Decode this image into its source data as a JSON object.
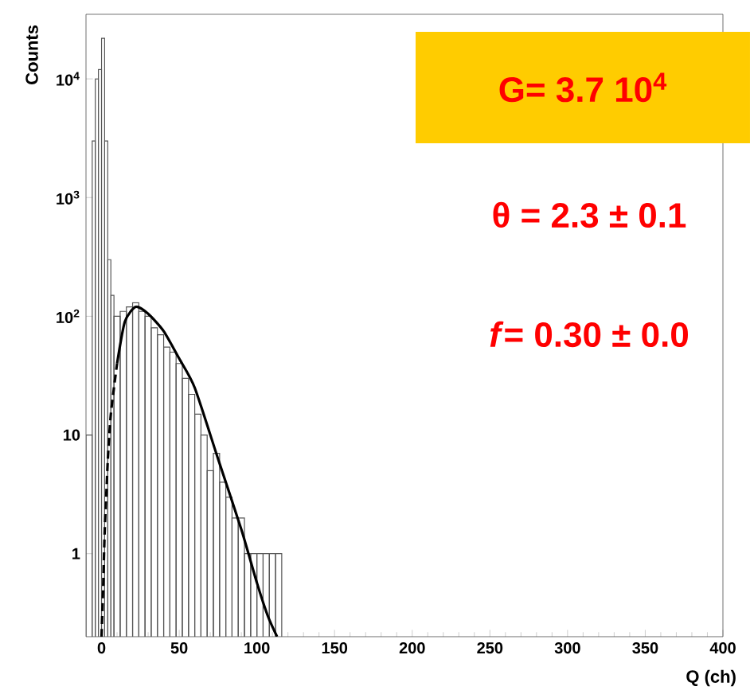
{
  "chart_data": {
    "type": "histogram",
    "xlabel": "Q (ch)",
    "ylabel": "Counts",
    "log": "y",
    "grid": false,
    "color": "#555555",
    "bins": [
      -10,
      -6,
      -4,
      -2,
      0,
      2,
      4,
      6,
      8,
      12,
      16,
      20,
      24,
      28,
      32,
      36,
      40,
      44,
      48,
      52,
      56,
      60,
      64,
      68,
      72,
      76,
      80,
      84,
      88,
      92,
      96,
      100,
      104,
      108,
      112,
      116
    ],
    "values": [
      10,
      3000,
      10000,
      12000,
      22000,
      3000,
      300,
      150,
      100,
      110,
      120,
      130,
      110,
      100,
      80,
      70,
      55,
      50,
      40,
      30,
      22,
      15,
      10,
      5,
      7,
      4,
      3,
      2,
      2,
      1,
      1,
      1,
      1,
      1,
      1
    ],
    "series": [
      {
        "type": "line",
        "line_style": "dashed",
        "color": "#000000",
        "x": [
          0,
          1,
          2,
          3,
          4,
          5,
          6,
          8,
          10
        ],
        "values": [
          0.2,
          0.5,
          1.5,
          3,
          6,
          10,
          15,
          25,
          40
        ]
      },
      {
        "type": "line",
        "line_style": "solid",
        "color": "#000000",
        "x": [
          10,
          15,
          22,
          30,
          40,
          50,
          60,
          75,
          90,
          100,
          107,
          113
        ],
        "values": [
          40,
          90,
          120,
          105,
          75,
          44,
          25,
          6.3,
          1.6,
          0.57,
          0.3,
          0.2
        ]
      }
    ],
    "xlim": [
      -10,
      400
    ],
    "ylim": [
      0.2,
      35000
    ],
    "xticks": [
      0,
      50,
      100,
      150,
      200,
      250,
      300,
      350,
      400
    ],
    "yticks": [
      1,
      10,
      {
        "value": 100,
        "label": "10$^{2}$"
      },
      {
        "value": 1000,
        "label": "10$^{3}$"
      },
      {
        "value": 10000,
        "label": "10$^{4}$"
      }
    ],
    "annotations": [
      "G= 3.7 10$^{4}$",
      "θ = 2.3 ± 0.1",
      "*f*= 0.30 ± 0.0"
    ]
  }
}
